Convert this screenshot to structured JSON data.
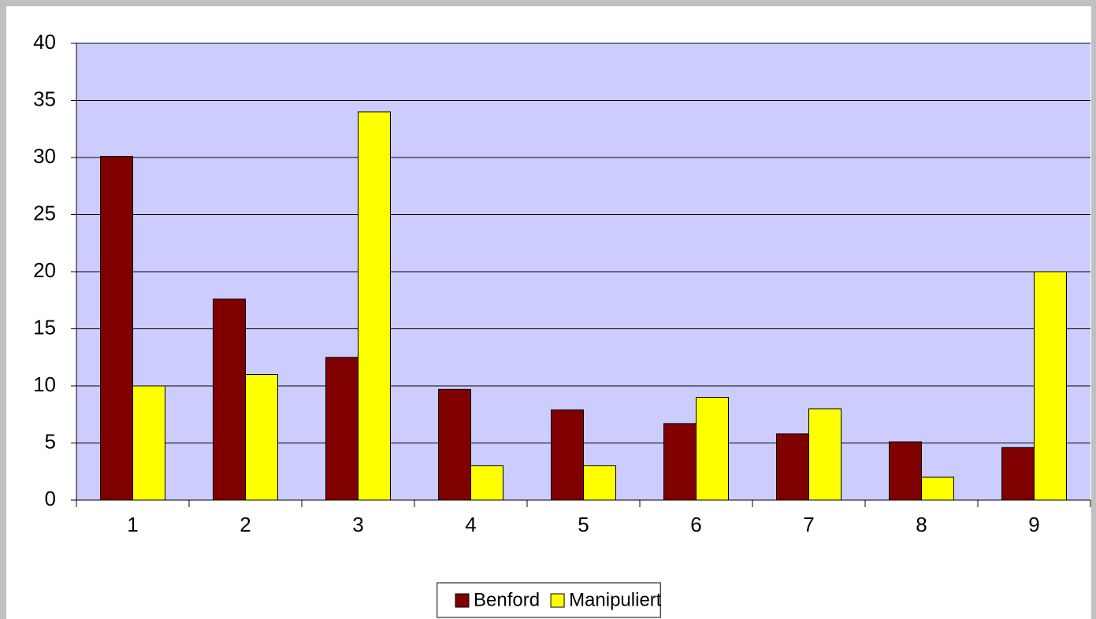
{
  "chart_data": {
    "type": "bar",
    "categories": [
      "1",
      "2",
      "3",
      "4",
      "5",
      "6",
      "7",
      "8",
      "9"
    ],
    "series": [
      {
        "name": "Benford",
        "color": "#800000",
        "values": [
          30.1,
          17.6,
          12.5,
          9.7,
          7.9,
          6.7,
          5.8,
          5.1,
          4.6
        ]
      },
      {
        "name": "Manipuliert",
        "color": "#ffff00",
        "values": [
          10,
          11,
          34,
          3,
          3,
          9,
          8,
          2,
          20
        ]
      }
    ],
    "ylim": [
      0,
      40
    ],
    "yticks": [
      0,
      5,
      10,
      15,
      20,
      25,
      30,
      35,
      40
    ],
    "grid": true,
    "plot_background": "#ccccff",
    "legend": "bottom"
  }
}
